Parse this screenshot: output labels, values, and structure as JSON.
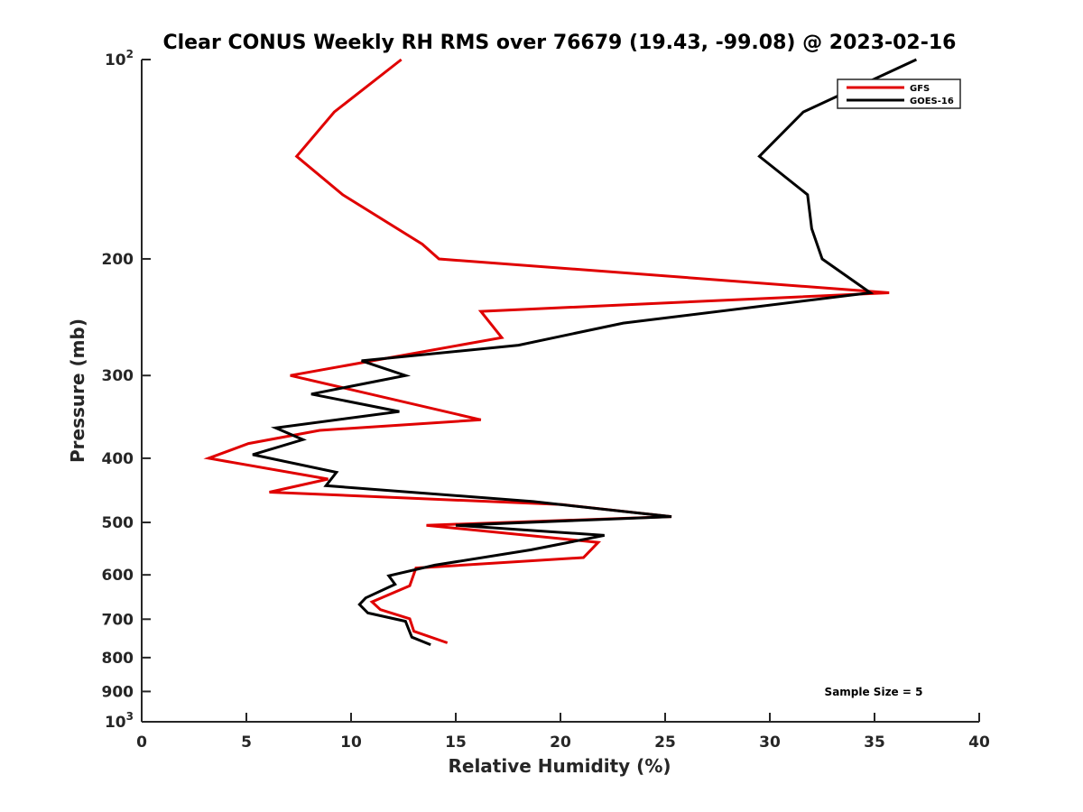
{
  "chart_data": {
    "type": "line",
    "title": "Clear CONUS Weekly RH RMS over 76679 (19.43, -99.08) @ 2023-02-16",
    "xlabel": "Relative Humidity (%)",
    "ylabel": "Pressure (mb)",
    "xlim": [
      0,
      40
    ],
    "ylim": [
      100,
      1000
    ],
    "y_scale": "log",
    "y_reversed": true,
    "x_ticks": [
      "0",
      "5",
      "10",
      "15",
      "20",
      "25",
      "30",
      "35",
      "40"
    ],
    "y_ticks": [
      {
        "value": 100,
        "label": "10",
        "sup": "2"
      },
      {
        "value": 200,
        "label": "200",
        "sup": ""
      },
      {
        "value": 300,
        "label": "300",
        "sup": ""
      },
      {
        "value": 400,
        "label": "400",
        "sup": ""
      },
      {
        "value": 500,
        "label": "500",
        "sup": ""
      },
      {
        "value": 600,
        "label": "600",
        "sup": ""
      },
      {
        "value": 700,
        "label": "700",
        "sup": ""
      },
      {
        "value": 800,
        "label": "800",
        "sup": ""
      },
      {
        "value": 900,
        "label": "900",
        "sup": ""
      },
      {
        "value": 1000,
        "label": "10",
        "sup": "3"
      }
    ],
    "grid": false,
    "legend_position": "top-right",
    "annotation": "Sample Size = 5",
    "series": [
      {
        "name": "GFS",
        "color": "#e00000",
        "x": [
          12.4,
          9.2,
          7.4,
          9.6,
          13.4,
          14.2,
          35.7,
          16.2,
          17.2,
          7.1,
          16.2,
          8.5,
          5.1,
          3.2,
          8.9,
          6.1,
          20.1,
          25.3,
          13.6,
          21.8,
          21.1,
          13.1,
          12.8,
          11.0,
          11.4,
          12.8,
          13.0,
          14.6
        ],
        "y": [
          100,
          120,
          140,
          160,
          190,
          200,
          225,
          240,
          263,
          300,
          350,
          363,
          380,
          400,
          430,
          450,
          470,
          490,
          505,
          536,
          565,
          586,
          623,
          659,
          677,
          699,
          730,
          760
        ]
      },
      {
        "name": "GOES-16",
        "color": "#000000",
        "x": [
          37.0,
          31.6,
          29.5,
          31.8,
          32.0,
          32.5,
          34.8,
          23.0,
          18.0,
          10.5,
          12.6,
          8.1,
          12.3,
          6.4,
          7.7,
          5.3,
          9.3,
          8.8,
          18.7,
          25.3,
          15.0,
          22.1,
          18.6,
          14.0,
          11.8,
          12.1,
          10.7,
          10.4,
          10.8,
          12.6,
          12.9,
          13.8
        ],
        "y": [
          100,
          120,
          140,
          160,
          180,
          200,
          225,
          250,
          270,
          285,
          300,
          320,
          340,
          360,
          375,
          395,
          420,
          440,
          465,
          490,
          505,
          523,
          550,
          580,
          602,
          620,
          650,
          665,
          685,
          705,
          745,
          765
        ]
      }
    ]
  }
}
